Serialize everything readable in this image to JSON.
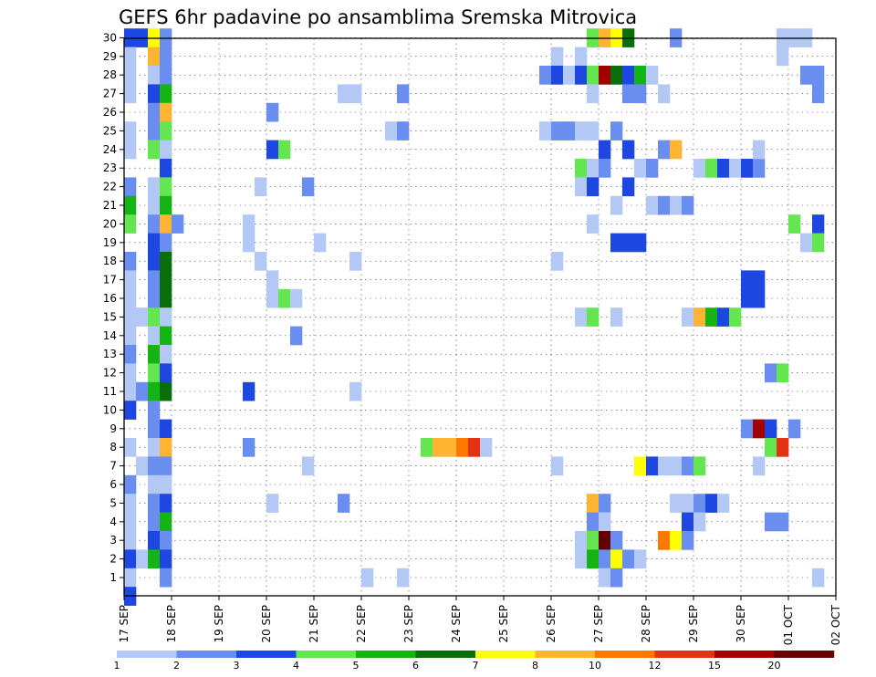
{
  "chart_data": {
    "type": "heatmap",
    "title": "GEFS 6hr padavine po ansamblima Sremska Mitrovica",
    "xlabel": "",
    "ylabel": "",
    "y_range": [
      1,
      30
    ],
    "x_tick_labels": [
      "17 SEP",
      "18 SEP",
      "19 SEP",
      "20 SEP",
      "21 SEP",
      "22 SEP",
      "23 SEP",
      "24 SEP",
      "25 SEP",
      "26 SEP",
      "27 SEP",
      "28 SEP",
      "29 SEP",
      "30 SEP",
      "01 OCT",
      "02 OCT"
    ],
    "y_tick_labels": [
      "1",
      "2",
      "3",
      "4",
      "5",
      "6",
      "7",
      "8",
      "9",
      "10",
      "11",
      "12",
      "13",
      "14",
      "15",
      "16",
      "17",
      "18",
      "19",
      "20",
      "21",
      "22",
      "23",
      "24",
      "25",
      "26",
      "27",
      "28",
      "29",
      "30"
    ],
    "grid": true,
    "legend": {
      "placement": "bottom",
      "levels": [
        "1",
        "2",
        "3",
        "4",
        "5",
        "6",
        "7",
        "8",
        "10",
        "12",
        "15",
        "20"
      ],
      "colors": [
        "#b4c8f5",
        "#6a8ef0",
        "#1e46e0",
        "#64e650",
        "#14b414",
        "#0a6e0a",
        "#ffff00",
        "#ffb432",
        "#ff7800",
        "#e63214",
        "#a00000",
        "#640000"
      ]
    },
    "cells": [
      {
        "x": "17 SEP 00",
        "m": 30,
        "c": 3
      },
      {
        "x": "17 SEP 06",
        "m": 30,
        "c": 3
      },
      {
        "x": "17 SEP 12",
        "m": 30,
        "c": 7
      },
      {
        "x": "17 SEP 18",
        "m": 30,
        "c": 2
      },
      {
        "x": "17 SEP 00",
        "m": 29,
        "c": 1
      },
      {
        "x": "17 SEP 12",
        "m": 29,
        "c": 8
      },
      {
        "x": "17 SEP 18",
        "m": 29,
        "c": 2
      },
      {
        "x": "17 SEP 00",
        "m": 28,
        "c": 1
      },
      {
        "x": "17 SEP 12",
        "m": 28,
        "c": 1
      },
      {
        "x": "17 SEP 18",
        "m": 28,
        "c": 2
      },
      {
        "x": "17 SEP 00",
        "m": 27,
        "c": 1
      },
      {
        "x": "17 SEP 12",
        "m": 27,
        "c": 3
      },
      {
        "x": "17 SEP 18",
        "m": 27,
        "c": 5
      },
      {
        "x": "17 SEP 12",
        "m": 26,
        "c": 2
      },
      {
        "x": "17 SEP 18",
        "m": 26,
        "c": 8
      },
      {
        "x": "17 SEP 00",
        "m": 25,
        "c": 1
      },
      {
        "x": "17 SEP 12",
        "m": 25,
        "c": 2
      },
      {
        "x": "17 SEP 18",
        "m": 25,
        "c": 4
      },
      {
        "x": "17 SEP 00",
        "m": 24,
        "c": 1
      },
      {
        "x": "17 SEP 12",
        "m": 24,
        "c": 4
      },
      {
        "x": "17 SEP 18",
        "m": 24,
        "c": 1
      },
      {
        "x": "17 SEP 18",
        "m": 23,
        "c": 3
      },
      {
        "x": "17 SEP 00",
        "m": 22,
        "c": 2
      },
      {
        "x": "17 SEP 12",
        "m": 22,
        "c": 1
      },
      {
        "x": "17 SEP 18",
        "m": 22,
        "c": 4
      },
      {
        "x": "17 SEP 00",
        "m": 21,
        "c": 5
      },
      {
        "x": "17 SEP 12",
        "m": 21,
        "c": 1
      },
      {
        "x": "17 SEP 18",
        "m": 21,
        "c": 5
      },
      {
        "x": "17 SEP 00",
        "m": 20,
        "c": 4
      },
      {
        "x": "17 SEP 12",
        "m": 20,
        "c": 2
      },
      {
        "x": "17 SEP 18",
        "m": 20,
        "c": 8
      },
      {
        "x": "18 SEP 00",
        "m": 20,
        "c": 2
      },
      {
        "x": "17 SEP 12",
        "m": 19,
        "c": 3
      },
      {
        "x": "17 SEP 18",
        "m": 19,
        "c": 2
      },
      {
        "x": "17 SEP 00",
        "m": 18,
        "c": 2
      },
      {
        "x": "17 SEP 12",
        "m": 18,
        "c": 3
      },
      {
        "x": "17 SEP 18",
        "m": 18,
        "c": 6
      },
      {
        "x": "17 SEP 00",
        "m": 17,
        "c": 1
      },
      {
        "x": "17 SEP 12",
        "m": 17,
        "c": 2
      },
      {
        "x": "17 SEP 18",
        "m": 17,
        "c": 6
      },
      {
        "x": "17 SEP 00",
        "m": 16,
        "c": 1
      },
      {
        "x": "17 SEP 12",
        "m": 16,
        "c": 2
      },
      {
        "x": "17 SEP 18",
        "m": 16,
        "c": 6
      },
      {
        "x": "17 SEP 00",
        "m": 15,
        "c": 1
      },
      {
        "x": "17 SEP 06",
        "m": 15,
        "c": 1
      },
      {
        "x": "17 SEP 12",
        "m": 15,
        "c": 4
      },
      {
        "x": "17 SEP 18",
        "m": 15,
        "c": 1
      },
      {
        "x": "17 SEP 00",
        "m": 14,
        "c": 1
      },
      {
        "x": "17 SEP 12",
        "m": 14,
        "c": 1
      },
      {
        "x": "17 SEP 18",
        "m": 14,
        "c": 5
      },
      {
        "x": "17 SEP 00",
        "m": 13,
        "c": 2
      },
      {
        "x": "17 SEP 12",
        "m": 13,
        "c": 5
      },
      {
        "x": "17 SEP 18",
        "m": 13,
        "c": 1
      },
      {
        "x": "17 SEP 00",
        "m": 12,
        "c": 1
      },
      {
        "x": "17 SEP 12",
        "m": 12,
        "c": 4
      },
      {
        "x": "17 SEP 18",
        "m": 12,
        "c": 3
      },
      {
        "x": "17 SEP 00",
        "m": 11,
        "c": 1
      },
      {
        "x": "17 SEP 06",
        "m": 11,
        "c": 2
      },
      {
        "x": "17 SEP 12",
        "m": 11,
        "c": 5
      },
      {
        "x": "17 SEP 18",
        "m": 11,
        "c": 6
      },
      {
        "x": "17 SEP 00",
        "m": 10,
        "c": 3
      },
      {
        "x": "17 SEP 12",
        "m": 10,
        "c": 2
      },
      {
        "x": "17 SEP 12",
        "m": 9,
        "c": 2
      },
      {
        "x": "17 SEP 18",
        "m": 9,
        "c": 3
      },
      {
        "x": "17 SEP 00",
        "m": 8,
        "c": 1
      },
      {
        "x": "17 SEP 12",
        "m": 8,
        "c": 1
      },
      {
        "x": "17 SEP 18",
        "m": 8,
        "c": 8
      },
      {
        "x": "17 SEP 06",
        "m": 7,
        "c": 1
      },
      {
        "x": "17 SEP 12",
        "m": 7,
        "c": 2
      },
      {
        "x": "17 SEP 18",
        "m": 7,
        "c": 2
      },
      {
        "x": "17 SEP 00",
        "m": 6,
        "c": 2
      },
      {
        "x": "17 SEP 12",
        "m": 6,
        "c": 1
      },
      {
        "x": "17 SEP 18",
        "m": 6,
        "c": 1
      },
      {
        "x": "17 SEP 00",
        "m": 5,
        "c": 1
      },
      {
        "x": "17 SEP 12",
        "m": 5,
        "c": 2
      },
      {
        "x": "17 SEP 18",
        "m": 5,
        "c": 3
      },
      {
        "x": "17 SEP 00",
        "m": 4,
        "c": 1
      },
      {
        "x": "17 SEP 12",
        "m": 4,
        "c": 2
      },
      {
        "x": "17 SEP 18",
        "m": 4,
        "c": 5
      },
      {
        "x": "17 SEP 00",
        "m": 3,
        "c": 1
      },
      {
        "x": "17 SEP 12",
        "m": 3,
        "c": 3
      },
      {
        "x": "17 SEP 18",
        "m": 3,
        "c": 2
      },
      {
        "x": "17 SEP 00",
        "m": 2,
        "c": 3
      },
      {
        "x": "17 SEP 06",
        "m": 2,
        "c": 1
      },
      {
        "x": "17 SEP 12",
        "m": 2,
        "c": 5
      },
      {
        "x": "17 SEP 18",
        "m": 2,
        "c": 3
      },
      {
        "x": "17 SEP 00",
        "m": 1,
        "c": 1
      },
      {
        "x": "17 SEP 18",
        "m": 1,
        "c": 2
      },
      {
        "x": "17 SEP 00",
        "m": 0,
        "c": 3
      },
      {
        "x": "20 SEP 00",
        "m": 26,
        "c": 2
      },
      {
        "x": "20 SEP 00",
        "m": 24,
        "c": 3
      },
      {
        "x": "20 SEP 06",
        "m": 24,
        "c": 4
      },
      {
        "x": "19 SEP 18",
        "m": 22,
        "c": 1
      },
      {
        "x": "20 SEP 18",
        "m": 22,
        "c": 2
      },
      {
        "x": "19 SEP 12",
        "m": 20,
        "c": 1
      },
      {
        "x": "19 SEP 12",
        "m": 19,
        "c": 1
      },
      {
        "x": "19 SEP 18",
        "m": 18,
        "c": 1
      },
      {
        "x": "20 SEP 00",
        "m": 17,
        "c": 1
      },
      {
        "x": "20 SEP 00",
        "m": 16,
        "c": 1
      },
      {
        "x": "20 SEP 06",
        "m": 16,
        "c": 4
      },
      {
        "x": "20 SEP 12",
        "m": 16,
        "c": 1
      },
      {
        "x": "20 SEP 12",
        "m": 14,
        "c": 2
      },
      {
        "x": "19 SEP 12",
        "m": 11,
        "c": 3
      },
      {
        "x": "19 SEP 12",
        "m": 8,
        "c": 2
      },
      {
        "x": "20 SEP 00",
        "m": 5,
        "c": 1
      },
      {
        "x": "21 SEP 00",
        "m": 19,
        "c": 1
      },
      {
        "x": "21 SEP 18",
        "m": 18,
        "c": 1
      },
      {
        "x": "20 SEP 18",
        "m": 7,
        "c": 1
      },
      {
        "x": "21 SEP 12",
        "m": 5,
        "c": 2
      },
      {
        "x": "21 SEP 18",
        "m": 11,
        "c": 1
      },
      {
        "x": "21 SEP 12",
        "m": 27,
        "c": 1
      },
      {
        "x": "21 SEP 18",
        "m": 27,
        "c": 1
      },
      {
        "x": "22 SEP 00",
        "m": 1,
        "c": 1
      },
      {
        "x": "22 SEP 12",
        "m": 25,
        "c": 1
      },
      {
        "x": "22 SEP 18",
        "m": 25,
        "c": 2
      },
      {
        "x": "22 SEP 18",
        "m": 1,
        "c": 1
      },
      {
        "x": "22 SEP 18",
        "m": 27,
        "c": 2
      },
      {
        "x": "23 SEP 06",
        "m": 8,
        "c": 4
      },
      {
        "x": "23 SEP 12",
        "m": 8,
        "c": 8
      },
      {
        "x": "23 SEP 18",
        "m": 8,
        "c": 8
      },
      {
        "x": "24 SEP 00",
        "m": 8,
        "c": 9
      },
      {
        "x": "24 SEP 06",
        "m": 8,
        "c": 10
      },
      {
        "x": "24 SEP 12",
        "m": 8,
        "c": 1
      },
      {
        "x": "26 SEP 00",
        "m": 29,
        "c": 1
      },
      {
        "x": "26 SEP 12",
        "m": 29,
        "c": 1
      },
      {
        "x": "25 SEP 18",
        "m": 28,
        "c": 2
      },
      {
        "x": "26 SEP 00",
        "m": 28,
        "c": 3
      },
      {
        "x": "26 SEP 06",
        "m": 28,
        "c": 1
      },
      {
        "x": "26 SEP 12",
        "m": 28,
        "c": 3
      },
      {
        "x": "26 SEP 18",
        "m": 28,
        "c": 4
      },
      {
        "x": "27 SEP 00",
        "m": 28,
        "c": 11
      },
      {
        "x": "27 SEP 06",
        "m": 28,
        "c": 6
      },
      {
        "x": "27 SEP 12",
        "m": 28,
        "c": 3
      },
      {
        "x": "27 SEP 18",
        "m": 28,
        "c": 5
      },
      {
        "x": "28 SEP 00",
        "m": 28,
        "c": 1
      },
      {
        "x": "26 SEP 18",
        "m": 30,
        "c": 4
      },
      {
        "x": "27 SEP 00",
        "m": 30,
        "c": 8
      },
      {
        "x": "27 SEP 06",
        "m": 30,
        "c": 7
      },
      {
        "x": "27 SEP 12",
        "m": 30,
        "c": 6
      },
      {
        "x": "28 SEP 12",
        "m": 30,
        "c": 2
      },
      {
        "x": "26 SEP 18",
        "m": 27,
        "c": 1
      },
      {
        "x": "27 SEP 12",
        "m": 27,
        "c": 2
      },
      {
        "x": "27 SEP 18",
        "m": 27,
        "c": 2
      },
      {
        "x": "28 SEP 06",
        "m": 27,
        "c": 1
      },
      {
        "x": "25 SEP 18",
        "m": 25,
        "c": 1
      },
      {
        "x": "26 SEP 00",
        "m": 25,
        "c": 2
      },
      {
        "x": "26 SEP 06",
        "m": 25,
        "c": 2
      },
      {
        "x": "26 SEP 12",
        "m": 25,
        "c": 1
      },
      {
        "x": "26 SEP 18",
        "m": 25,
        "c": 1
      },
      {
        "x": "27 SEP 06",
        "m": 25,
        "c": 2
      },
      {
        "x": "27 SEP 00",
        "m": 24,
        "c": 3
      },
      {
        "x": "27 SEP 12",
        "m": 24,
        "c": 3
      },
      {
        "x": "28 SEP 06",
        "m": 24,
        "c": 2
      },
      {
        "x": "28 SEP 12",
        "m": 24,
        "c": 8
      },
      {
        "x": "26 SEP 12",
        "m": 23,
        "c": 4
      },
      {
        "x": "26 SEP 18",
        "m": 23,
        "c": 1
      },
      {
        "x": "27 SEP 00",
        "m": 23,
        "c": 2
      },
      {
        "x": "27 SEP 18",
        "m": 23,
        "c": 1
      },
      {
        "x": "28 SEP 00",
        "m": 23,
        "c": 2
      },
      {
        "x": "29 SEP 00",
        "m": 23,
        "c": 1
      },
      {
        "x": "29 SEP 06",
        "m": 23,
        "c": 4
      },
      {
        "x": "29 SEP 12",
        "m": 23,
        "c": 3
      },
      {
        "x": "29 SEP 18",
        "m": 23,
        "c": 1
      },
      {
        "x": "30 SEP 00",
        "m": 23,
        "c": 3
      },
      {
        "x": "30 SEP 06",
        "m": 23,
        "c": 2
      },
      {
        "x": "30 SEP 06",
        "m": 24,
        "c": 1
      },
      {
        "x": "26 SEP 12",
        "m": 22,
        "c": 1
      },
      {
        "x": "26 SEP 18",
        "m": 22,
        "c": 3
      },
      {
        "x": "27 SEP 12",
        "m": 22,
        "c": 3
      },
      {
        "x": "27 SEP 06",
        "m": 21,
        "c": 1
      },
      {
        "x": "28 SEP 00",
        "m": 21,
        "c": 1
      },
      {
        "x": "28 SEP 06",
        "m": 21,
        "c": 2
      },
      {
        "x": "28 SEP 12",
        "m": 21,
        "c": 1
      },
      {
        "x": "28 SEP 18",
        "m": 21,
        "c": 2
      },
      {
        "x": "26 SEP 18",
        "m": 20,
        "c": 1
      },
      {
        "x": "27 SEP 06",
        "m": 19,
        "c": 3
      },
      {
        "x": "27 SEP 12",
        "m": 19,
        "c": 3
      },
      {
        "x": "27 SEP 18",
        "m": 19,
        "c": 3
      },
      {
        "x": "26 SEP 00",
        "m": 18,
        "c": 1
      },
      {
        "x": "30 SEP 00",
        "m": 17,
        "c": 3
      },
      {
        "x": "30 SEP 06",
        "m": 17,
        "c": 3
      },
      {
        "x": "30 SEP 00",
        "m": 16,
        "c": 3
      },
      {
        "x": "30 SEP 06",
        "m": 16,
        "c": 3
      },
      {
        "x": "26 SEP 12",
        "m": 15,
        "c": 1
      },
      {
        "x": "26 SEP 18",
        "m": 15,
        "c": 4
      },
      {
        "x": "27 SEP 06",
        "m": 15,
        "c": 1
      },
      {
        "x": "28 SEP 18",
        "m": 15,
        "c": 1
      },
      {
        "x": "29 SEP 00",
        "m": 15,
        "c": 8
      },
      {
        "x": "29 SEP 06",
        "m": 15,
        "c": 5
      },
      {
        "x": "29 SEP 12",
        "m": 15,
        "c": 3
      },
      {
        "x": "29 SEP 18",
        "m": 15,
        "c": 4
      },
      {
        "x": "30 SEP 00",
        "m": 9,
        "c": 2
      },
      {
        "x": "30 SEP 06",
        "m": 9,
        "c": 11
      },
      {
        "x": "30 SEP 12",
        "m": 9,
        "c": 3
      },
      {
        "x": "26 SEP 00",
        "m": 7,
        "c": 1
      },
      {
        "x": "27 SEP 18",
        "m": 7,
        "c": 7
      },
      {
        "x": "28 SEP 00",
        "m": 7,
        "c": 3
      },
      {
        "x": "28 SEP 06",
        "m": 7,
        "c": 1
      },
      {
        "x": "28 SEP 12",
        "m": 7,
        "c": 1
      },
      {
        "x": "28 SEP 18",
        "m": 7,
        "c": 2
      },
      {
        "x": "29 SEP 00",
        "m": 7,
        "c": 4
      },
      {
        "x": "26 SEP 18",
        "m": 5,
        "c": 8
      },
      {
        "x": "27 SEP 00",
        "m": 5,
        "c": 2
      },
      {
        "x": "28 SEP 12",
        "m": 5,
        "c": 1
      },
      {
        "x": "28 SEP 18",
        "m": 5,
        "c": 1
      },
      {
        "x": "29 SEP 00",
        "m": 5,
        "c": 2
      },
      {
        "x": "29 SEP 06",
        "m": 5,
        "c": 3
      },
      {
        "x": "29 SEP 12",
        "m": 5,
        "c": 1
      },
      {
        "x": "26 SEP 18",
        "m": 4,
        "c": 2
      },
      {
        "x": "27 SEP 00",
        "m": 4,
        "c": 1
      },
      {
        "x": "28 SEP 18",
        "m": 4,
        "c": 3
      },
      {
        "x": "29 SEP 00",
        "m": 4,
        "c": 1
      },
      {
        "x": "26 SEP 12",
        "m": 3,
        "c": 1
      },
      {
        "x": "26 SEP 18",
        "m": 3,
        "c": 4
      },
      {
        "x": "27 SEP 00",
        "m": 3,
        "c": 12
      },
      {
        "x": "27 SEP 06",
        "m": 3,
        "c": 2
      },
      {
        "x": "28 SEP 06",
        "m": 3,
        "c": 9
      },
      {
        "x": "28 SEP 12",
        "m": 3,
        "c": 7
      },
      {
        "x": "28 SEP 18",
        "m": 3,
        "c": 2
      },
      {
        "x": "26 SEP 12",
        "m": 2,
        "c": 1
      },
      {
        "x": "26 SEP 18",
        "m": 2,
        "c": 5
      },
      {
        "x": "27 SEP 00",
        "m": 2,
        "c": 2
      },
      {
        "x": "27 SEP 06",
        "m": 2,
        "c": 7
      },
      {
        "x": "27 SEP 12",
        "m": 2,
        "c": 2
      },
      {
        "x": "27 SEP 18",
        "m": 2,
        "c": 1
      },
      {
        "x": "27 SEP 00",
        "m": 1,
        "c": 1
      },
      {
        "x": "27 SEP 06",
        "m": 1,
        "c": 2
      },
      {
        "x": "30 SEP 18",
        "m": 30,
        "c": 1
      },
      {
        "x": "01 OCT 00",
        "m": 30,
        "c": 1
      },
      {
        "x": "01 OCT 06",
        "m": 30,
        "c": 1
      },
      {
        "x": "30 SEP 18",
        "m": 29,
        "c": 1
      },
      {
        "x": "01 OCT 06",
        "m": 28,
        "c": 2
      },
      {
        "x": "01 OCT 12",
        "m": 28,
        "c": 2
      },
      {
        "x": "01 OCT 12",
        "m": 27,
        "c": 2
      },
      {
        "x": "01 OCT 00",
        "m": 20,
        "c": 4
      },
      {
        "x": "01 OCT 12",
        "m": 20,
        "c": 3
      },
      {
        "x": "01 OCT 06",
        "m": 19,
        "c": 1
      },
      {
        "x": "01 OCT 12",
        "m": 19,
        "c": 4
      },
      {
        "x": "30 SEP 12",
        "m": 12,
        "c": 2
      },
      {
        "x": "30 SEP 18",
        "m": 12,
        "c": 4
      },
      {
        "x": "01 OCT 00",
        "m": 9,
        "c": 2
      },
      {
        "x": "30 SEP 12",
        "m": 8,
        "c": 4
      },
      {
        "x": "30 SEP 18",
        "m": 8,
        "c": 10
      },
      {
        "x": "30 SEP 06",
        "m": 7,
        "c": 1
      },
      {
        "x": "30 SEP 12",
        "m": 4,
        "c": 2
      },
      {
        "x": "30 SEP 18",
        "m": 4,
        "c": 2
      },
      {
        "x": "01 OCT 12",
        "m": 1,
        "c": 1
      }
    ]
  }
}
